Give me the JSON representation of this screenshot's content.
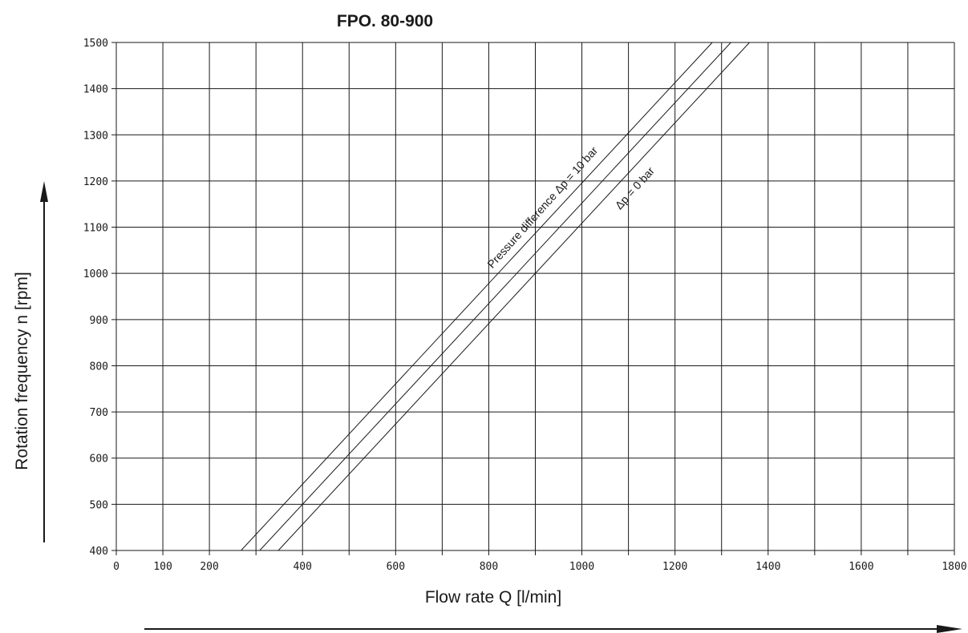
{
  "chart_data": {
    "type": "line",
    "title": "FPO. 80-900",
    "xlabel": "Flow rate Q [l/min]",
    "ylabel": "Rotation frequency n [rpm]",
    "xlim": [
      0,
      1800
    ],
    "ylim": [
      400,
      1500
    ],
    "x_ticks": [
      0,
      100,
      200,
      400,
      600,
      800,
      1000,
      1200,
      1400,
      1600,
      1800
    ],
    "y_ticks": [
      400,
      500,
      600,
      700,
      800,
      900,
      1000,
      1100,
      1200,
      1300,
      1400,
      1500
    ],
    "grid": true,
    "series": [
      {
        "x": [
          268,
          1280
        ],
        "y": [
          400,
          1500
        ]
      },
      {
        "x": [
          308,
          1320
        ],
        "y": [
          400,
          1500
        ]
      },
      {
        "x": [
          348,
          1360
        ],
        "y": [
          400,
          1500
        ]
      }
    ],
    "annotations": [
      {
        "text": "Pressure difference Δp = 10 bar"
      },
      {
        "text": "Δp = 0 bar"
      }
    ]
  }
}
